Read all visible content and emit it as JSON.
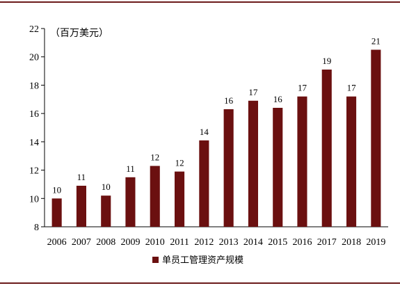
{
  "colors": {
    "bar": "#6b1010",
    "frame": "#6b1a1a",
    "axis": "#000000"
  },
  "chart_data": {
    "type": "bar",
    "title": "",
    "xlabel": "",
    "ylabel": "（百万美元）",
    "categories": [
      "2006",
      "2007",
      "2008",
      "2009",
      "2010",
      "2011",
      "2012",
      "2013",
      "2014",
      "2015",
      "2016",
      "2017",
      "2018",
      "2019"
    ],
    "series": [
      {
        "name": "单员工管理资产规模",
        "values": [
          10.0,
          10.9,
          10.2,
          11.5,
          12.3,
          11.9,
          14.1,
          16.3,
          16.9,
          16.4,
          17.2,
          19.1,
          17.2,
          20.5
        ],
        "labels": [
          "10",
          "11",
          "10",
          "11",
          "12",
          "12",
          "14",
          "16",
          "17",
          "16",
          "17",
          "19",
          "17",
          "21"
        ]
      }
    ],
    "ylim": [
      8,
      22
    ],
    "yticks": [
      8,
      10,
      12,
      14,
      16,
      18,
      20,
      22
    ],
    "grid": false,
    "legend_position": "bottom-center"
  }
}
